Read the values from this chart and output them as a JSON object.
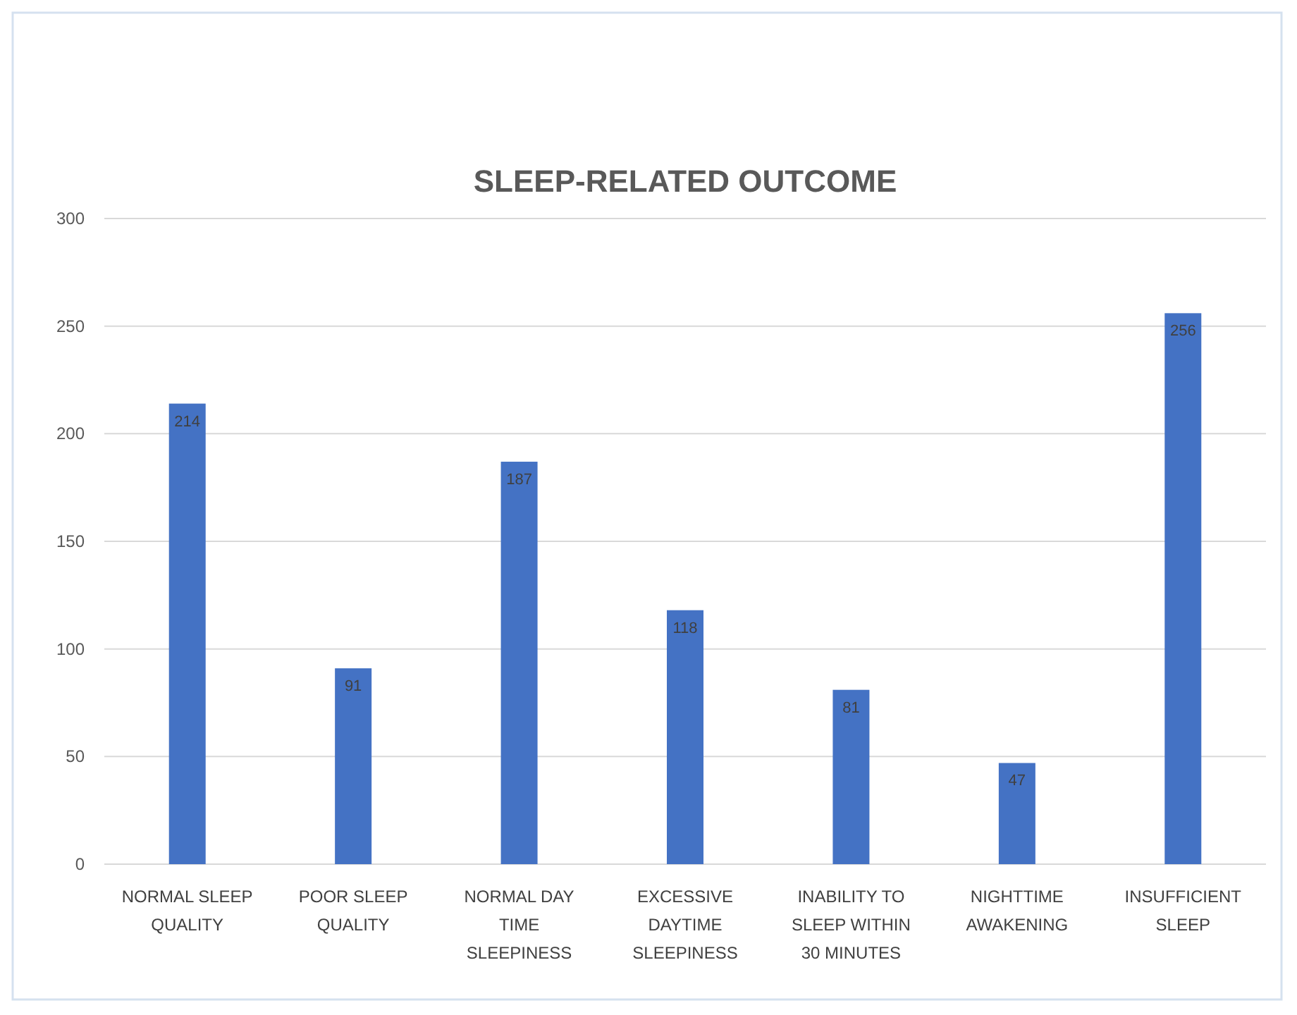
{
  "chart_data": {
    "type": "bar",
    "title": "SLEEP-RELATED OUTCOME",
    "categories": [
      "NORMAL SLEEP QUALITY",
      "POOR SLEEP QUALITY",
      "NORMAL DAY TIME SLEEPINESS",
      "EXCESSIVE DAYTIME SLEEPINESS",
      "INABILITY TO SLEEP WITHIN 30 MINUTES",
      "NIGHTTIME AWAKENING",
      "INSUFFICIENT SLEEP"
    ],
    "values": [
      214,
      91,
      187,
      118,
      81,
      47,
      256
    ],
    "color": "#4472c4",
    "ylim": [
      0,
      300
    ],
    "yticks": [
      0,
      50,
      100,
      150,
      200,
      250,
      300
    ],
    "grid": "y",
    "data_labels": true
  }
}
